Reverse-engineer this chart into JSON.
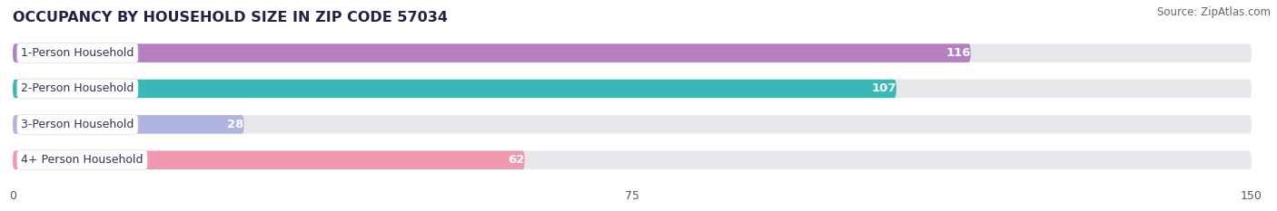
{
  "title": "OCCUPANCY BY HOUSEHOLD SIZE IN ZIP CODE 57034",
  "source": "Source: ZipAtlas.com",
  "categories": [
    "1-Person Household",
    "2-Person Household",
    "3-Person Household",
    "4+ Person Household"
  ],
  "values": [
    116,
    107,
    28,
    62
  ],
  "bar_colors": [
    "#b57fc0",
    "#3ab8b5",
    "#b0b4e0",
    "#f098b0"
  ],
  "xlim": [
    0,
    150
  ],
  "xticks": [
    0,
    75,
    150
  ],
  "title_fontsize": 11.5,
  "title_color": "#222244",
  "source_fontsize": 8.5,
  "source_color": "#666666",
  "bar_height": 0.52,
  "value_label_color": "#ffffff",
  "value_label_fontsize": 9.5,
  "category_fontsize": 9,
  "background_color": "#ffffff",
  "bar_track_color": "#e8e8ec",
  "gap_color": "#f0f0f4"
}
